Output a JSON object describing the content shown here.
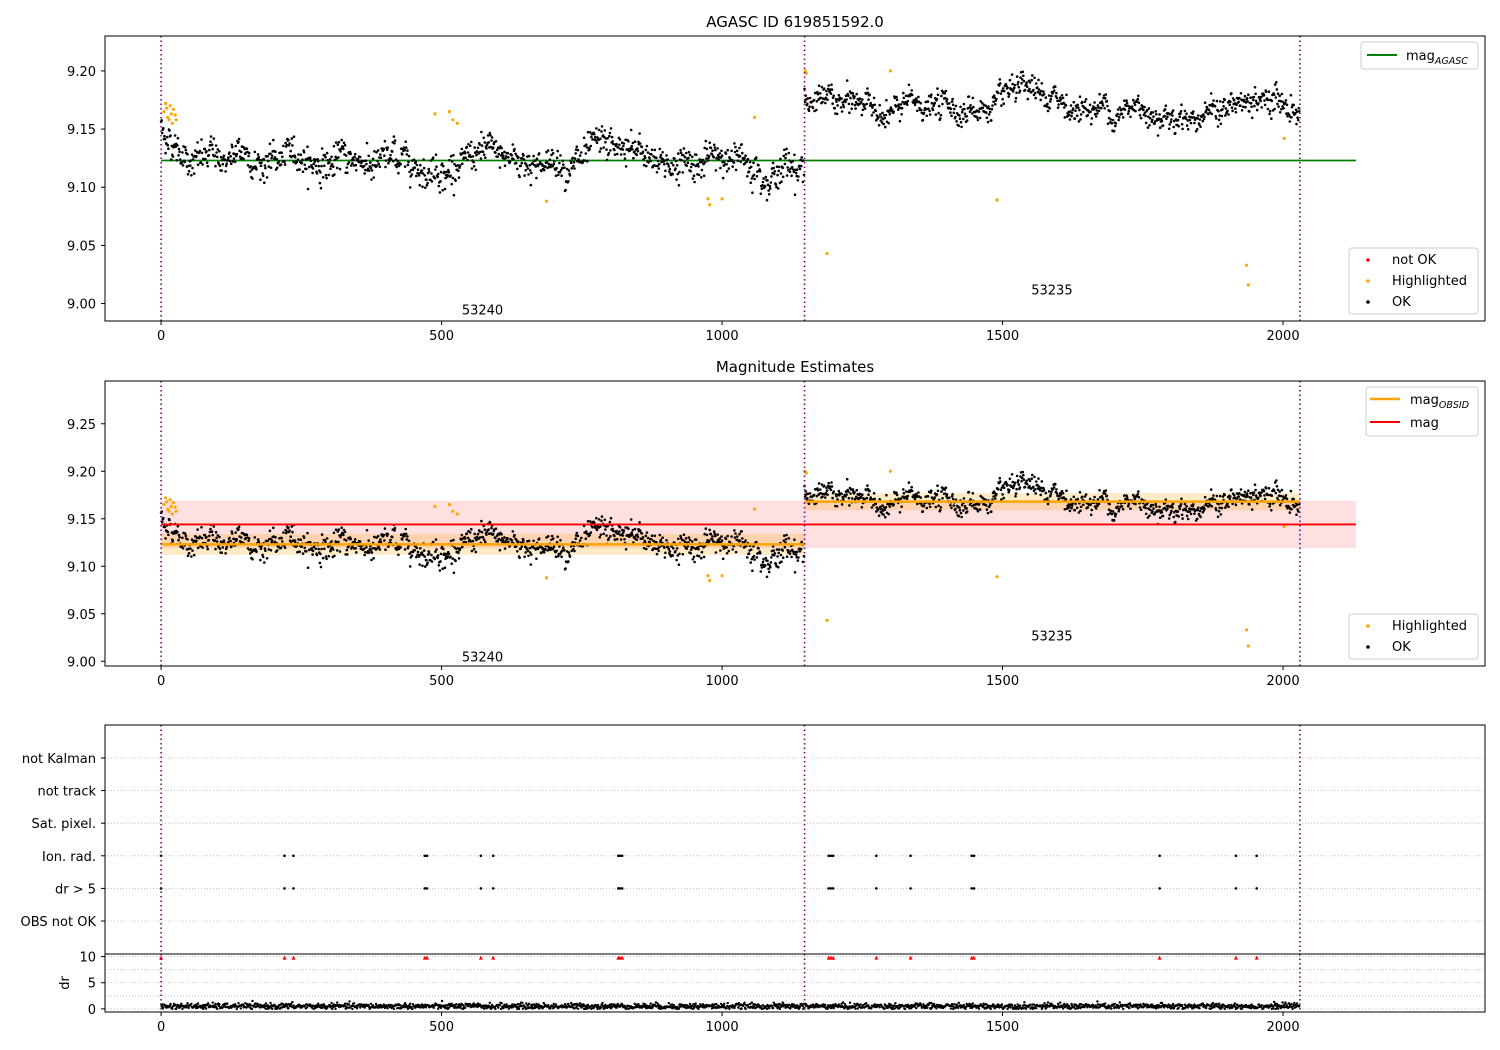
{
  "chart_data": [
    {
      "type": "scatter",
      "title": "AGASC ID 619851592.0",
      "xlim": [
        -100,
        2360
      ],
      "ylim": [
        8.985,
        9.23
      ],
      "xticks": [
        0,
        500,
        1000,
        1500,
        2000
      ],
      "yticks": [
        9.0,
        9.05,
        9.1,
        9.15,
        9.2
      ],
      "ytick_labels": [
        "9.00",
        "9.05",
        "9.10",
        "9.15",
        "9.20"
      ],
      "obs_boundaries": [
        0,
        1147,
        2030
      ],
      "obs_labels": [
        {
          "text": "53240",
          "x": 573,
          "y": 8.995
        },
        {
          "text": "53235",
          "x": 1588,
          "y": 9.012
        }
      ],
      "ok_segments": [
        {
          "x0": 0,
          "x1": 1147,
          "center": 9.123,
          "spread": 0.011,
          "start_extra": 0.028,
          "decay": 40
        },
        {
          "x0": 1147,
          "x1": 2030,
          "center": 9.168,
          "spread": 0.009,
          "start_extra": 0.012,
          "decay": 30
        }
      ],
      "highlighted": [
        [
          5,
          9.165
        ],
        [
          8,
          9.172
        ],
        [
          10,
          9.168
        ],
        [
          12,
          9.16
        ],
        [
          14,
          9.158
        ],
        [
          16,
          9.17
        ],
        [
          18,
          9.163
        ],
        [
          20,
          9.155
        ],
        [
          22,
          9.167
        ],
        [
          25,
          9.162
        ],
        [
          27,
          9.158
        ],
        [
          488,
          9.163
        ],
        [
          514,
          9.165
        ],
        [
          520,
          9.158
        ],
        [
          528,
          9.155
        ],
        [
          687,
          9.088
        ],
        [
          975,
          9.09
        ],
        [
          978,
          9.085
        ],
        [
          1000,
          9.09
        ],
        [
          1058,
          9.16
        ],
        [
          1148,
          9.2
        ],
        [
          1150,
          9.198
        ],
        [
          1187,
          9.043
        ],
        [
          1300,
          9.2
        ],
        [
          1490,
          9.089
        ],
        [
          1935,
          9.033
        ],
        [
          1938,
          9.016
        ],
        [
          2002,
          9.142
        ]
      ],
      "lines": [
        {
          "name": "mag",
          "subscript": "AGASC",
          "y": 9.123,
          "x0": 0,
          "x1": 2130,
          "color": "#008000"
        }
      ],
      "legend_lines_position": "upper right",
      "legend_points": [
        {
          "name": "not OK",
          "color": "#ff0000"
        },
        {
          "name": "Highlighted",
          "color": "#ffa500"
        },
        {
          "name": "OK",
          "color": "#000000"
        }
      ],
      "legend_points_position": "lower right"
    },
    {
      "type": "scatter",
      "title": "Magnitude Estimates",
      "xlim": [
        -100,
        2360
      ],
      "ylim": [
        8.995,
        9.295
      ],
      "xticks": [
        0,
        500,
        1000,
        1500,
        2000
      ],
      "yticks": [
        9.0,
        9.05,
        9.1,
        9.15,
        9.2,
        9.25
      ],
      "ytick_labels": [
        "9.00",
        "9.05",
        "9.10",
        "9.15",
        "9.20",
        "9.25"
      ],
      "obs_boundaries": [
        0,
        1147,
        2030
      ],
      "obs_labels": [
        {
          "text": "53240",
          "x": 573,
          "y": 9.005
        },
        {
          "text": "53235",
          "x": 1588,
          "y": 9.027
        }
      ],
      "mag_band": {
        "y": 9.144,
        "lo": 9.119,
        "hi": 9.169,
        "x0": 0,
        "x1": 2130,
        "color": "#ff0000"
      },
      "obsid_mags": [
        {
          "x0": 0,
          "x1": 1147,
          "y": 9.123,
          "lo": 9.112,
          "hi": 9.134
        },
        {
          "x0": 1147,
          "x1": 2030,
          "y": 9.168,
          "lo": 9.159,
          "hi": 9.177
        }
      ],
      "legend_lines": [
        {
          "name": "mag",
          "subscript": "OBSID",
          "color": "#ffa500"
        },
        {
          "name": "mag",
          "subscript": "",
          "color": "#ff0000"
        }
      ],
      "legend_lines_position": "upper right",
      "legend_points": [
        {
          "name": "Highlighted",
          "color": "#ffa500"
        },
        {
          "name": "OK",
          "color": "#000000"
        }
      ],
      "legend_points_position": "lower right"
    },
    {
      "type": "scatter",
      "title": "",
      "xlim": [
        -100,
        2360
      ],
      "xticks": [
        0,
        500,
        1000,
        1500,
        2000
      ],
      "flag_categories": [
        "not Kalman",
        "not track",
        "Sat. pixel.",
        "Ion. rad.",
        "dr > 5",
        "OBS not OK"
      ],
      "flag_points": {
        "Ion. rad.": [
          0,
          220,
          236,
          470,
          474,
          570,
          592,
          815,
          818,
          822,
          1190,
          1194,
          1198,
          1275,
          1336,
          1445,
          1449,
          1780,
          1916,
          1953
        ],
        "dr > 5": [
          0,
          220,
          236,
          470,
          474,
          570,
          592,
          815,
          818,
          822,
          1190,
          1194,
          1198,
          1275,
          1336,
          1445,
          1449,
          1780,
          1916,
          1953
        ]
      },
      "dr_ylim": [
        -0.6,
        10.5
      ],
      "dr_yticks": [
        0,
        5,
        10
      ],
      "dr_ylabel": "dr",
      "dr_high_x": [
        0,
        220,
        236,
        470,
        474,
        570,
        592,
        815,
        818,
        822,
        1190,
        1194,
        1198,
        1275,
        1336,
        1445,
        1449,
        1780,
        1916,
        1953
      ],
      "dr_high_value": 9.8,
      "dr_typical": 0.5
    }
  ],
  "colors": {
    "ok": "#000000",
    "highlighted": "#ffa500",
    "not_ok": "#ff0000",
    "boundary": "#800080"
  }
}
